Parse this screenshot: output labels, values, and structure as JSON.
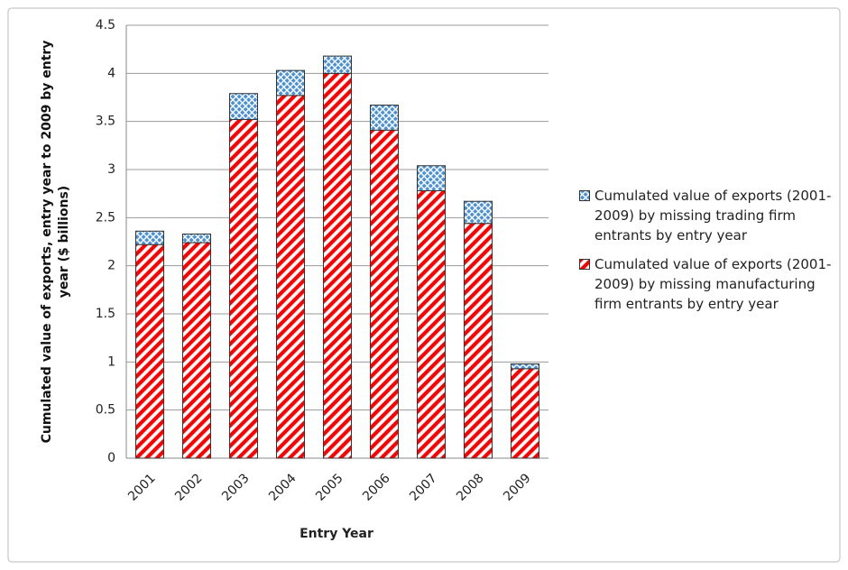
{
  "chart_data": {
    "type": "stacked_bar",
    "x_label": "Entry Year",
    "y_label": "Cumulated value of exports, entry year to 2009 by entry year ($ billions)",
    "categories": [
      "2001",
      "2002",
      "2003",
      "2004",
      "2005",
      "2006",
      "2007",
      "2008",
      "2009"
    ],
    "series": [
      {
        "name": "Cumulated value of exports (2001-2009) by missing manufacturing firm entrants by entry year",
        "color": "#ff0000",
        "pattern": "diagonal",
        "values": [
          2.22,
          2.24,
          3.52,
          3.77,
          4.0,
          3.41,
          2.78,
          2.44,
          0.93
        ]
      },
      {
        "name": "Cumulated value of exports (2001-2009) by missing trading firm entrants by entry year",
        "color": "#4a90d6",
        "pattern": "crosshatch",
        "values": [
          0.14,
          0.09,
          0.27,
          0.26,
          0.18,
          0.26,
          0.26,
          0.23,
          0.05
        ]
      }
    ],
    "ylim": [
      0,
      4.5
    ],
    "yticks": [
      0,
      0.5,
      1,
      1.5,
      2,
      2.5,
      3,
      3.5,
      4,
      4.5
    ],
    "grid": true,
    "legend": "right"
  }
}
